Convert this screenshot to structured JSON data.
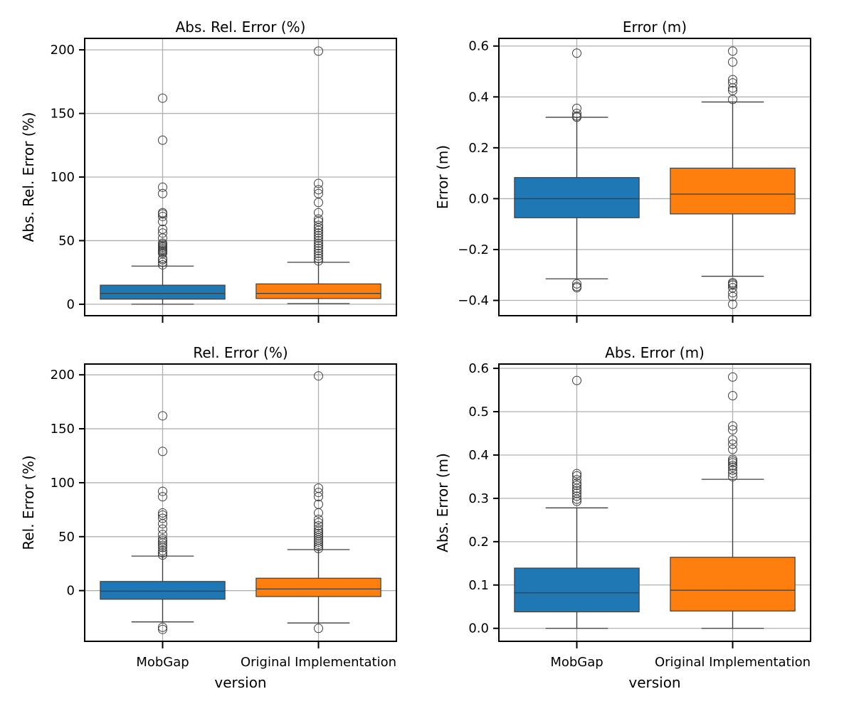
{
  "chart_data": [
    {
      "type": "box",
      "title": "Abs. Rel. Error (%)",
      "xlabel": "",
      "ylabel": "Abs. Rel. Error (%)",
      "categories": [
        "MobGap",
        "Original Implementation"
      ],
      "show_xticklabels": false,
      "ylim": [
        -9,
        209
      ],
      "yticks": [
        0,
        50,
        100,
        150,
        200
      ],
      "ytick_labels": [
        "0",
        "50",
        "100",
        "150",
        "200"
      ],
      "grid": true,
      "series": [
        {
          "color": "#1f77b4",
          "whisker_low": 0,
          "q1": 4,
          "median": 8.5,
          "q3": 15,
          "whisker_high": 30,
          "outliers": [
            31,
            33,
            35,
            36,
            40,
            41,
            42,
            43,
            44,
            45,
            46,
            47,
            48,
            52,
            56,
            59,
            65,
            69,
            71,
            72,
            87,
            92,
            129,
            162
          ]
        },
        {
          "color": "#ff7f0e",
          "whisker_low": 0.5,
          "q1": 4.5,
          "median": 8.5,
          "q3": 16,
          "whisker_high": 33,
          "outliers": [
            34,
            36,
            38,
            40,
            42,
            44,
            46,
            48,
            50,
            52,
            54,
            56,
            58,
            60,
            62,
            65,
            67,
            72,
            80,
            87,
            90,
            95,
            199
          ]
        }
      ]
    },
    {
      "type": "box",
      "title": "Error (m)",
      "xlabel": "",
      "ylabel": "Error (m)",
      "categories": [
        "MobGap",
        "Original Implementation"
      ],
      "show_xticklabels": false,
      "ylim": [
        -0.46,
        0.63
      ],
      "yticks": [
        -0.4,
        -0.2,
        0.0,
        0.2,
        0.4,
        0.6
      ],
      "ytick_labels": [
        "−0.4",
        "−0.2",
        "0.0",
        "0.2",
        "0.4",
        "0.6"
      ],
      "grid": true,
      "series": [
        {
          "color": "#1f77b4",
          "whisker_low": -0.315,
          "q1": -0.075,
          "median": 0.0,
          "q3": 0.083,
          "whisker_high": 0.32,
          "outliers": [
            -0.35,
            -0.345,
            -0.335,
            0.32,
            0.325,
            0.335,
            0.355,
            0.572
          ]
        },
        {
          "color": "#ff7f0e",
          "whisker_low": -0.305,
          "q1": -0.06,
          "median": 0.018,
          "q3": 0.12,
          "whisker_high": 0.38,
          "outliers": [
            -0.415,
            -0.385,
            -0.37,
            -0.35,
            -0.34,
            -0.335,
            -0.33,
            0.39,
            0.425,
            0.435,
            0.455,
            0.468,
            0.537,
            0.58
          ]
        }
      ]
    },
    {
      "type": "box",
      "title": "Rel. Error (%)",
      "xlabel": "version",
      "ylabel": "Rel. Error (%)",
      "categories": [
        "MobGap",
        "Original Implementation"
      ],
      "show_xticklabels": true,
      "ylim": [
        -47,
        210
      ],
      "yticks": [
        0,
        50,
        100,
        150,
        200
      ],
      "ytick_labels": [
        "0",
        "50",
        "100",
        "150",
        "200"
      ],
      "grid": true,
      "series": [
        {
          "color": "#1f77b4",
          "whisker_low": -29,
          "q1": -8,
          "median": -0.5,
          "q3": 8.5,
          "whisker_high": 32,
          "outliers": [
            -36,
            -34,
            33,
            35,
            37,
            40,
            42,
            44,
            46,
            48,
            52,
            57,
            62,
            67,
            70,
            72,
            87,
            92,
            129,
            162
          ]
        },
        {
          "color": "#ff7f0e",
          "whisker_low": -30,
          "q1": -5.5,
          "median": 1.5,
          "q3": 11.5,
          "whisker_high": 38,
          "outliers": [
            -35,
            39,
            41,
            43,
            45,
            47,
            49,
            51,
            53,
            55,
            57,
            60,
            63,
            66,
            72,
            80,
            87,
            91,
            95,
            199
          ]
        }
      ]
    },
    {
      "type": "box",
      "title": "Abs. Error (m)",
      "xlabel": "version",
      "ylabel": "Abs. Error (m)",
      "categories": [
        "MobGap",
        "Original Implementation"
      ],
      "show_xticklabels": true,
      "ylim": [
        -0.03,
        0.61
      ],
      "yticks": [
        0.0,
        0.1,
        0.2,
        0.3,
        0.4,
        0.5,
        0.6
      ],
      "ytick_labels": [
        "0.0",
        "0.1",
        "0.2",
        "0.3",
        "0.4",
        "0.5",
        "0.6"
      ],
      "grid": true,
      "series": [
        {
          "color": "#1f77b4",
          "whisker_low": 0.0,
          "q1": 0.038,
          "median": 0.082,
          "q3": 0.139,
          "whisker_high": 0.278,
          "outliers": [
            0.293,
            0.298,
            0.305,
            0.312,
            0.318,
            0.323,
            0.33,
            0.335,
            0.343,
            0.352,
            0.357,
            0.572
          ]
        },
        {
          "color": "#ff7f0e",
          "whisker_low": 0.0,
          "q1": 0.04,
          "median": 0.088,
          "q3": 0.164,
          "whisker_high": 0.344,
          "outliers": [
            0.35,
            0.358,
            0.365,
            0.372,
            0.376,
            0.382,
            0.386,
            0.39,
            0.413,
            0.425,
            0.435,
            0.458,
            0.467,
            0.537,
            0.58
          ]
        }
      ]
    }
  ]
}
